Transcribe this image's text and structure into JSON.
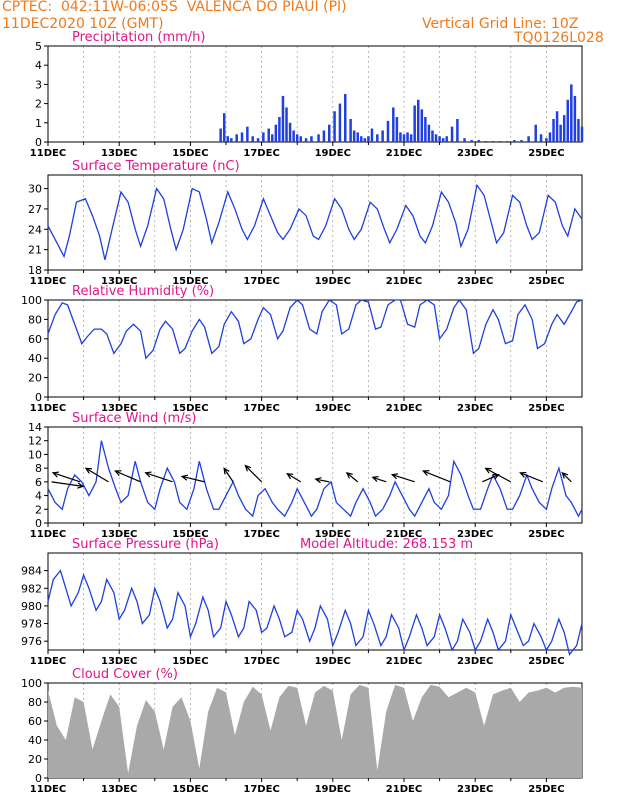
{
  "header": {
    "line1": "CPTEC:  042:11W-06:05S  VALENCA DO PIAUI (PI)",
    "line2": "11DEC2020 10Z (GMT)",
    "grid_note": "Vertical Grid Line: 10Z",
    "code": "TQ0126L028",
    "model_altitude": "Model Altitude: 268.153 m"
  },
  "colors": {
    "header": "#ee7a1c",
    "title": "#e0168c",
    "series": "#1f3fe0",
    "bars": "#1f3fe0",
    "cloud": "#a9a9a9",
    "arrows": "#000000"
  },
  "x_ticks": [
    "11DEC",
    "13DEC",
    "15DEC",
    "17DEC",
    "19DEC",
    "21DEC",
    "23DEC",
    "25DEC"
  ],
  "chart_data": [
    {
      "type": "bar",
      "title": "Precipitation (mm/h)",
      "ylim": [
        0,
        5
      ],
      "yticks": [
        "0",
        "1",
        "2",
        "3",
        "4",
        "5"
      ],
      "x_range_days": [
        0,
        15
      ],
      "x": [
        4.85,
        4.95,
        5.05,
        5.15,
        5.3,
        5.45,
        5.6,
        5.75,
        5.9,
        6.05,
        6.2,
        6.3,
        6.4,
        6.5,
        6.6,
        6.7,
        6.8,
        6.9,
        7.0,
        7.1,
        7.25,
        7.4,
        7.6,
        7.75,
        7.9,
        8.05,
        8.2,
        8.35,
        8.5,
        8.6,
        8.7,
        8.8,
        8.9,
        9.0,
        9.1,
        9.25,
        9.4,
        9.55,
        9.7,
        9.8,
        9.9,
        10.0,
        10.1,
        10.2,
        10.3,
        10.4,
        10.5,
        10.6,
        10.7,
        10.8,
        10.9,
        11.0,
        11.1,
        11.2,
        11.35,
        11.5,
        11.7,
        11.9,
        12.1,
        12.3,
        12.5,
        12.7,
        12.9,
        13.1,
        13.3,
        13.5,
        13.7,
        13.85,
        14.0,
        14.1,
        14.2,
        14.3,
        14.4,
        14.5,
        14.6,
        14.7,
        14.8,
        14.9,
        15.0
      ],
      "values": [
        0.7,
        1.5,
        0.3,
        0.2,
        0.4,
        0.5,
        0.8,
        0.3,
        0.2,
        0.5,
        0.7,
        0.4,
        0.9,
        1.3,
        2.4,
        1.8,
        1.0,
        0.6,
        0.4,
        0.3,
        0.2,
        0.3,
        0.4,
        0.6,
        0.9,
        1.6,
        2.0,
        2.5,
        1.2,
        0.6,
        0.5,
        0.3,
        0.2,
        0.3,
        0.7,
        0.4,
        0.6,
        1.1,
        1.8,
        1.3,
        0.5,
        0.4,
        0.5,
        0.4,
        1.9,
        2.2,
        1.7,
        1.3,
        0.9,
        0.6,
        0.4,
        0.3,
        0.2,
        0.3,
        0.8,
        1.2,
        0.2,
        0.1,
        0.1,
        0.05,
        0.05,
        0.05,
        0.05,
        0.1,
        0.1,
        0.3,
        0.9,
        0.4,
        0.2,
        0.5,
        1.2,
        1.6,
        0.9,
        1.4,
        2.2,
        3.0,
        2.4,
        1.2,
        0.8
      ]
    },
    {
      "type": "line",
      "title": "Surface Temperature (nC)",
      "ylim": [
        18,
        32
      ],
      "yticks": [
        "18",
        "21",
        "24",
        "27",
        "30"
      ],
      "x_range_days": [
        0,
        15
      ],
      "x": [
        0,
        0.25,
        0.45,
        0.6,
        0.8,
        1.05,
        1.25,
        1.45,
        1.6,
        1.8,
        2.05,
        2.25,
        2.45,
        2.6,
        2.8,
        3.05,
        3.25,
        3.45,
        3.6,
        3.8,
        4.05,
        4.25,
        4.45,
        4.6,
        4.8,
        5.05,
        5.25,
        5.45,
        5.6,
        5.8,
        6.05,
        6.25,
        6.45,
        6.6,
        6.8,
        7.05,
        7.25,
        7.45,
        7.6,
        7.8,
        8.05,
        8.25,
        8.45,
        8.6,
        8.8,
        9.05,
        9.25,
        9.45,
        9.6,
        9.8,
        10.05,
        10.25,
        10.45,
        10.6,
        10.8,
        11.05,
        11.25,
        11.45,
        11.6,
        11.8,
        12.05,
        12.25,
        12.45,
        12.6,
        12.8,
        13.05,
        13.25,
        13.45,
        13.6,
        13.8,
        14.05,
        14.25,
        14.45,
        14.6,
        14.8,
        15.0
      ],
      "values": [
        24.5,
        22.0,
        20.0,
        23.0,
        28.0,
        28.5,
        26.0,
        23.0,
        19.5,
        24.0,
        29.5,
        28.0,
        24.0,
        21.5,
        24.5,
        30.0,
        28.5,
        24.0,
        21.0,
        24.0,
        30.0,
        29.5,
        25.5,
        22.0,
        25.0,
        29.5,
        27.0,
        24.0,
        22.5,
        24.5,
        28.5,
        26.0,
        23.5,
        22.5,
        24.0,
        27.0,
        26.0,
        23.0,
        22.5,
        24.5,
        28.5,
        27.0,
        24.0,
        22.5,
        24.0,
        28.0,
        27.0,
        24.0,
        22.0,
        24.0,
        27.5,
        26.0,
        23.0,
        22.0,
        24.5,
        29.5,
        28.0,
        25.0,
        21.5,
        24.0,
        30.5,
        29.0,
        25.0,
        22.0,
        23.5,
        29.0,
        28.0,
        24.5,
        22.5,
        23.5,
        29.0,
        28.0,
        24.5,
        23.0,
        27.0,
        25.5
      ]
    },
    {
      "type": "line",
      "title": "Relative Humidity (%)",
      "ylim": [
        0,
        100
      ],
      "yticks": [
        "0",
        "20",
        "40",
        "60",
        "80",
        "100"
      ],
      "x_range_days": [
        0,
        15
      ],
      "x": [
        0,
        0.2,
        0.4,
        0.55,
        0.75,
        0.95,
        1.1,
        1.3,
        1.5,
        1.65,
        1.85,
        2.05,
        2.2,
        2.4,
        2.6,
        2.75,
        2.95,
        3.15,
        3.3,
        3.5,
        3.7,
        3.85,
        4.05,
        4.25,
        4.4,
        4.6,
        4.8,
        4.95,
        5.15,
        5.35,
        5.5,
        5.7,
        5.9,
        6.05,
        6.25,
        6.45,
        6.6,
        6.8,
        7.0,
        7.15,
        7.35,
        7.55,
        7.7,
        7.9,
        8.1,
        8.25,
        8.45,
        8.65,
        8.8,
        9.0,
        9.2,
        9.35,
        9.55,
        9.75,
        9.9,
        10.1,
        10.3,
        10.45,
        10.65,
        10.85,
        11.0,
        11.2,
        11.4,
        11.55,
        11.75,
        11.95,
        12.1,
        12.3,
        12.5,
        12.65,
        12.85,
        13.05,
        13.2,
        13.4,
        13.6,
        13.75,
        13.95,
        14.15,
        14.3,
        14.5,
        14.7,
        14.85,
        15.0
      ],
      "values": [
        65,
        85,
        97,
        95,
        75,
        55,
        62,
        70,
        70,
        65,
        45,
        55,
        68,
        75,
        68,
        40,
        48,
        70,
        78,
        70,
        45,
        50,
        68,
        80,
        72,
        45,
        52,
        75,
        88,
        78,
        55,
        60,
        80,
        92,
        85,
        60,
        68,
        92,
        100,
        95,
        70,
        65,
        88,
        100,
        95,
        65,
        70,
        95,
        100,
        98,
        70,
        72,
        95,
        100,
        100,
        75,
        72,
        95,
        100,
        95,
        60,
        70,
        92,
        100,
        90,
        45,
        50,
        75,
        90,
        80,
        55,
        58,
        85,
        95,
        80,
        50,
        55,
        75,
        85,
        75,
        88,
        98,
        100
      ]
    },
    {
      "type": "line",
      "title": "Surface Wind (m/s)",
      "ylim": [
        0,
        14
      ],
      "yticks": [
        "0",
        "2",
        "4",
        "6",
        "8",
        "10",
        "12",
        "14"
      ],
      "x_range_days": [
        0,
        15
      ],
      "x": [
        0,
        0.2,
        0.4,
        0.55,
        0.75,
        0.95,
        1.15,
        1.35,
        1.5,
        1.7,
        1.9,
        2.05,
        2.25,
        2.45,
        2.6,
        2.8,
        3.0,
        3.15,
        3.35,
        3.55,
        3.7,
        3.9,
        4.1,
        4.25,
        4.45,
        4.65,
        4.8,
        5.0,
        5.2,
        5.35,
        5.55,
        5.75,
        5.9,
        6.1,
        6.3,
        6.45,
        6.65,
        6.85,
        7.0,
        7.2,
        7.4,
        7.55,
        7.75,
        7.95,
        8.1,
        8.3,
        8.5,
        8.65,
        8.85,
        9.05,
        9.2,
        9.4,
        9.6,
        9.75,
        9.95,
        10.15,
        10.3,
        10.5,
        10.7,
        10.85,
        11.05,
        11.25,
        11.4,
        11.6,
        11.8,
        11.95,
        12.15,
        12.35,
        12.5,
        12.7,
        12.9,
        13.05,
        13.25,
        13.45,
        13.6,
        13.8,
        14.0,
        14.15,
        14.35,
        14.55,
        14.7,
        14.9,
        15.0
      ],
      "values": [
        5,
        3,
        2,
        5,
        7,
        6,
        4,
        6,
        12,
        8,
        5,
        3,
        4,
        9,
        6,
        3,
        2,
        5,
        8,
        6,
        3,
        2,
        5,
        9,
        5,
        2,
        2,
        4,
        6,
        4,
        2,
        1,
        4,
        5,
        3,
        2,
        1,
        3,
        5,
        3,
        1,
        2,
        5,
        6,
        3,
        2,
        1,
        3,
        5,
        3,
        1,
        2,
        4,
        6,
        4,
        2,
        1,
        3,
        5,
        3,
        2,
        4,
        9,
        7,
        4,
        2,
        2,
        5,
        7,
        5,
        2,
        2,
        4,
        7,
        5,
        3,
        2,
        5,
        8,
        4,
        3,
        1,
        2
      ],
      "arrows": [
        {
          "x": 0.1,
          "u": 3.5,
          "v": -0.5
        },
        {
          "x": 0.9,
          "u": -3.0,
          "v": 1.0
        },
        {
          "x": 1.7,
          "u": -2.5,
          "v": 1.5
        },
        {
          "x": 2.6,
          "u": -2.8,
          "v": 1.2
        },
        {
          "x": 3.5,
          "u": -3.0,
          "v": 1.0
        },
        {
          "x": 4.4,
          "u": -2.5,
          "v": 0.6
        },
        {
          "x": 5.2,
          "u": -1.0,
          "v": 1.5
        },
        {
          "x": 6.0,
          "u": -1.8,
          "v": 1.8
        },
        {
          "x": 7.1,
          "u": -1.5,
          "v": 0.9
        },
        {
          "x": 7.9,
          "u": -1.5,
          "v": 0.3
        },
        {
          "x": 8.7,
          "u": -1.2,
          "v": 1.0
        },
        {
          "x": 9.5,
          "u": -1.5,
          "v": 0.5
        },
        {
          "x": 10.3,
          "u": -2.5,
          "v": 0.8
        },
        {
          "x": 11.3,
          "u": -3.0,
          "v": 1.2
        },
        {
          "x": 12.2,
          "u": 1.8,
          "v": 0.8
        },
        {
          "x": 13.0,
          "u": -2.8,
          "v": 1.5
        },
        {
          "x": 13.9,
          "u": -2.5,
          "v": 1.0
        },
        {
          "x": 14.7,
          "u": -1.0,
          "v": 1.0
        }
      ]
    },
    {
      "type": "line",
      "title": "Surface Pressure (hPa)",
      "ylim": [
        975,
        986
      ],
      "yticks": [
        "976",
        "978",
        "980",
        "982",
        "984"
      ],
      "x_range_days": [
        0,
        15
      ],
      "x": [
        0,
        0.15,
        0.35,
        0.5,
        0.65,
        0.85,
        1.0,
        1.15,
        1.35,
        1.5,
        1.65,
        1.85,
        2.0,
        2.15,
        2.35,
        2.5,
        2.65,
        2.85,
        3.0,
        3.15,
        3.35,
        3.5,
        3.65,
        3.85,
        4.0,
        4.15,
        4.35,
        4.5,
        4.65,
        4.85,
        5.0,
        5.15,
        5.35,
        5.5,
        5.65,
        5.85,
        6.0,
        6.15,
        6.35,
        6.5,
        6.65,
        6.85,
        7.0,
        7.15,
        7.35,
        7.5,
        7.65,
        7.85,
        8.0,
        8.15,
        8.35,
        8.5,
        8.65,
        8.85,
        9.0,
        9.15,
        9.35,
        9.5,
        9.65,
        9.85,
        10.0,
        10.15,
        10.35,
        10.5,
        10.65,
        10.85,
        11.0,
        11.15,
        11.35,
        11.5,
        11.65,
        11.85,
        12.0,
        12.15,
        12.35,
        12.5,
        12.65,
        12.85,
        13.0,
        13.15,
        13.35,
        13.5,
        13.65,
        13.85,
        14.0,
        14.15,
        14.35,
        14.5,
        14.65,
        14.85,
        15.0
      ],
      "values": [
        980.5,
        983.0,
        984.0,
        982.0,
        980.0,
        981.5,
        983.5,
        982.0,
        979.5,
        980.5,
        983.0,
        981.5,
        978.5,
        979.5,
        982.0,
        980.5,
        978.0,
        979.0,
        982.0,
        980.5,
        977.5,
        978.5,
        981.5,
        980.0,
        976.5,
        978.0,
        981.0,
        979.5,
        976.5,
        977.5,
        980.5,
        979.0,
        976.5,
        977.5,
        980.5,
        979.5,
        977.0,
        977.5,
        980.0,
        978.5,
        976.5,
        977.0,
        979.5,
        978.5,
        976.0,
        977.5,
        980.0,
        978.5,
        975.5,
        977.0,
        979.5,
        978.0,
        975.5,
        976.5,
        979.5,
        978.0,
        975.5,
        976.5,
        979.0,
        977.5,
        975.0,
        976.5,
        979.0,
        977.5,
        975.5,
        976.5,
        979.0,
        977.5,
        975.0,
        976.0,
        978.5,
        977.0,
        975.0,
        976.0,
        978.5,
        977.0,
        975.0,
        976.0,
        979.0,
        977.5,
        975.5,
        976.0,
        978.0,
        976.5,
        975.0,
        976.0,
        978.5,
        977.0,
        974.5,
        975.5,
        978.0
      ]
    },
    {
      "type": "area",
      "title": "Cloud Cover (%)",
      "ylim": [
        0,
        100
      ],
      "yticks": [
        "0",
        "20",
        "40",
        "60",
        "80",
        "100"
      ],
      "x_range_days": [
        0,
        15
      ],
      "x": [
        0,
        0.25,
        0.5,
        0.75,
        1.0,
        1.25,
        1.5,
        1.75,
        2.0,
        2.25,
        2.5,
        2.75,
        3.0,
        3.25,
        3.5,
        3.75,
        4.0,
        4.25,
        4.5,
        4.75,
        5.0,
        5.25,
        5.5,
        5.75,
        6.0,
        6.25,
        6.5,
        6.75,
        7.0,
        7.25,
        7.5,
        7.75,
        8.0,
        8.25,
        8.5,
        8.75,
        9.0,
        9.25,
        9.5,
        9.75,
        10.0,
        10.25,
        10.5,
        10.75,
        11.0,
        11.25,
        11.5,
        11.75,
        12.0,
        12.25,
        12.5,
        12.75,
        13.0,
        13.25,
        13.5,
        13.75,
        14.0,
        14.25,
        14.5,
        14.75,
        15.0
      ],
      "values": [
        92,
        55,
        40,
        85,
        80,
        30,
        60,
        88,
        75,
        5,
        55,
        82,
        70,
        30,
        75,
        85,
        60,
        10,
        70,
        95,
        90,
        45,
        80,
        96,
        88,
        50,
        85,
        97,
        95,
        55,
        90,
        97,
        92,
        40,
        88,
        98,
        95,
        8,
        70,
        98,
        95,
        60,
        85,
        98,
        96,
        85,
        90,
        95,
        90,
        55,
        88,
        92,
        95,
        80,
        90,
        92,
        95,
        90,
        95,
        96,
        95
      ]
    }
  ]
}
